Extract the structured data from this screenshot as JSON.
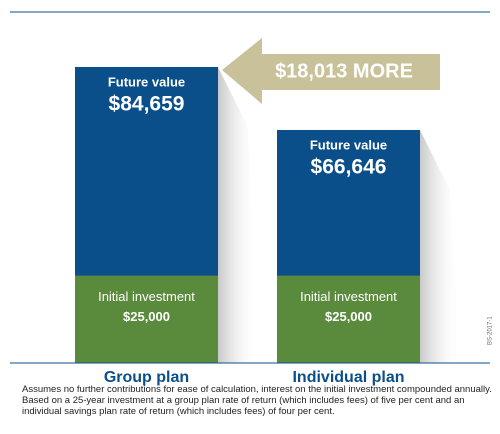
{
  "chart_data": {
    "type": "bar",
    "categories": [
      "Group plan",
      "Individual plan"
    ],
    "series": [
      {
        "name": "Future value",
        "color": "#0b4f8a",
        "values": [
          84659,
          66646
        ],
        "value_labels": [
          "$84,659",
          "$66,646"
        ]
      },
      {
        "name": "Initial investment",
        "color": "#5a8a3c",
        "values": [
          25000,
          25000
        ],
        "value_labels": [
          "$25,000",
          "$25,000"
        ]
      }
    ],
    "annotation": "$18,013 MORE",
    "side_code": "BS-2017-1",
    "footnote": "Assumes no further contributions for ease of calculation, interest on the initial investment compounded annually. Based on a 25-year investment at a group plan rate of return (which includes fees) of five per cent and an individual savings plan rate of return (which includes fees) of four per cent."
  }
}
